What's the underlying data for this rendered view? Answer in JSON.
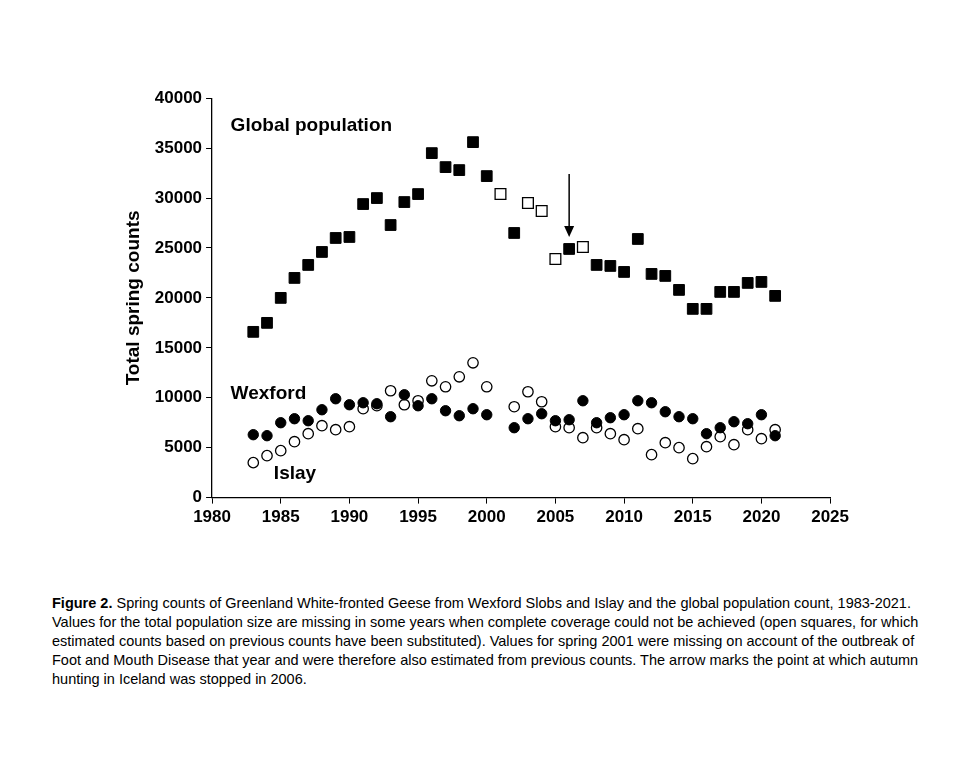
{
  "chart_data": {
    "type": "scatter",
    "y_label": "Total spring counts",
    "x": [
      1983,
      1984,
      1985,
      1986,
      1987,
      1988,
      1989,
      1990,
      1991,
      1992,
      1993,
      1994,
      1995,
      1996,
      1997,
      1998,
      1999,
      2000,
      2001,
      2002,
      2003,
      2004,
      2005,
      2006,
      2007,
      2008,
      2009,
      2010,
      2011,
      2012,
      2013,
      2014,
      2015,
      2016,
      2017,
      2018,
      2019,
      2020,
      2021
    ],
    "series": [
      {
        "name": "Global population",
        "color": "#000000",
        "marker": "square",
        "values": [
          16600,
          17500,
          20000,
          22000,
          23300,
          24600,
          26000,
          26100,
          29400,
          30000,
          27300,
          29600,
          30400,
          34500,
          33100,
          32800,
          35600,
          32200,
          null,
          26500,
          null,
          null,
          null,
          24900,
          null,
          23300,
          23200,
          22600,
          25900,
          22400,
          22200,
          20800,
          18900,
          18900,
          20600,
          20600,
          21500,
          21600,
          20200
        ]
      },
      {
        "name": "Global population",
        "color": "#000000",
        "marker": "square_open",
        "values": [
          null,
          null,
          null,
          null,
          null,
          null,
          null,
          null,
          null,
          null,
          null,
          null,
          null,
          null,
          null,
          null,
          null,
          null,
          30400,
          null,
          29500,
          28700,
          23900,
          null,
          25100,
          null,
          null,
          null,
          null,
          null,
          null,
          null,
          null,
          null,
          null,
          null,
          null,
          null,
          null
        ]
      },
      {
        "name": "Wexford",
        "color": "#000000",
        "marker": "circle",
        "values": [
          6300,
          6200,
          7500,
          7900,
          7700,
          8800,
          9900,
          9300,
          9500,
          9400,
          8100,
          10300,
          9200,
          9900,
          8700,
          8200,
          8900,
          8300,
          null,
          7000,
          7900,
          8400,
          7700,
          7800,
          9700,
          7500,
          8000,
          8300,
          9700,
          9500,
          8600,
          8100,
          7900,
          6400,
          7000,
          7600,
          7400,
          8300,
          6200
        ]
      },
      {
        "name": "Islay",
        "color": "#000000",
        "marker": "circle_open",
        "values": [
          3500,
          4200,
          4700,
          5600,
          6400,
          7200,
          6800,
          7100,
          8900,
          9200,
          10700,
          9300,
          9700,
          11700,
          11100,
          12100,
          13500,
          11100,
          null,
          9100,
          10600,
          9600,
          7100,
          7000,
          6000,
          7000,
          6400,
          5800,
          6900,
          4300,
          5500,
          5000,
          3900,
          5100,
          6100,
          5300,
          6800,
          5900,
          6800
        ]
      }
    ],
    "xlim": [
      1980,
      2025
    ],
    "xticks": [
      1980,
      1985,
      1990,
      1995,
      2000,
      2005,
      2010,
      2015,
      2020,
      2025
    ],
    "ylim": [
      0,
      40000
    ],
    "yticks": [
      0,
      5000,
      10000,
      15000,
      20000,
      25000,
      30000,
      35000,
      40000
    ],
    "grid": false,
    "annotations": [
      {
        "type": "arrow",
        "x": 2006,
        "y_start": 32400,
        "y_end": 26100
      }
    ],
    "caption": {
      "label": "Figure 2.",
      "text": "Spring counts of Greenland White-fronted Geese from Wexford Slobs and Islay and the global population count, 1983-2021. Values for the total population size are missing in some years when complete coverage could not be achieved (open squares, for which estimated counts based on previous counts have been substituted). Values for spring 2001 were missing on account of the outbreak of Foot and Mouth Disease that year and were therefore also estimated from previous counts. The arrow marks the point at which autumn hunting in Iceland was stopped in 2006."
    }
  }
}
